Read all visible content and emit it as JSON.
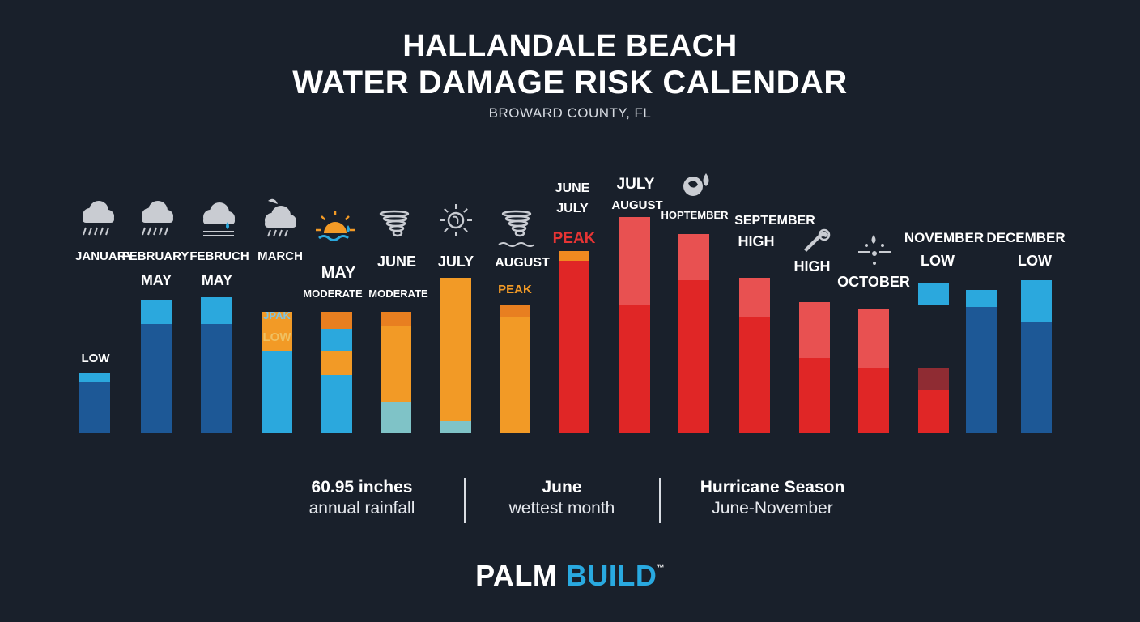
{
  "header": {
    "title_line1": "HALLANDALE BEACH",
    "title_line2": "WATER DAMAGE RISK CALENDAR",
    "subtitle": "BROWARD COUNTY, FL"
  },
  "colors": {
    "background": "#19202b",
    "low_dark": "#1d5896",
    "low_light": "#2ba8dd",
    "moderate": "#f29a26",
    "high": "#e02626",
    "high_light": "#e85151",
    "peak_label": "#e53434"
  },
  "chart_data": {
    "type": "bar",
    "title": "WATER DAMAGE RISK CALENDAR",
    "xlabel": "",
    "ylabel": "",
    "ylim": [
      0,
      100
    ],
    "grid": false,
    "legend": "none",
    "categories": [
      "JANUARY",
      "FEBRUARY",
      "FEBRUCH",
      "MARCH",
      "MAY",
      "JUNE",
      "JULY",
      "AUGUST",
      "JUNE JULY",
      "JULY AUGUST",
      "HOPTEMBER",
      "SEPTEMBER",
      "HIGH",
      "OCTOBER",
      "NOVEMBER",
      "DECEMBER",
      "LOW"
    ],
    "bars": [
      {
        "value": 25,
        "cap": 4,
        "lower": "#1d5896",
        "cap_color": "#2ba8dd",
        "icon": "rain-cloud-icon",
        "labels": [
          "JANUARY",
          "LOW"
        ]
      },
      {
        "value": 55,
        "cap": 10,
        "lower": "#1d5896",
        "cap_color": "#2ba8dd",
        "icon": "rain-cloud-icon",
        "labels": [
          "FEBRUARY",
          "MAY"
        ]
      },
      {
        "value": 56,
        "cap": 11,
        "lower": "#1d5896",
        "cap_color": "#2ba8dd",
        "icon": "cloud-drop-icon",
        "labels": [
          "FEBRUCH",
          "MAY"
        ]
      },
      {
        "value": 50,
        "cap": 16,
        "lower": "#2ba8dd",
        "cap_color": "#f29a26",
        "icon": "storm-cloud-icon",
        "labels": [
          "MARCH",
          "JPAK",
          "LOW"
        ]
      },
      {
        "value": 50,
        "cap": 7,
        "lower": "#2ba8dd",
        "mid": "#f29a26",
        "mid_top": 34,
        "cap_color": "#e87f20",
        "icon": "sun-waves-icon",
        "labels": [
          "MAY",
          "MODERATE"
        ]
      },
      {
        "value": 50,
        "cap": 6,
        "lower": "#7fc3c7",
        "mid": "#f29a26",
        "mid_top": 44,
        "cap_color": "#e87f20",
        "icon": "tornado-icon",
        "labels": [
          "JUNE",
          "MODERATE"
        ]
      },
      {
        "value": 64,
        "cap": 0,
        "lower": "#7fc3c7",
        "mid": "#f29a26",
        "mid_top": 64,
        "cap_color": "#f29a26",
        "icon": "sun-hurricane-icon",
        "labels": [
          "JULY"
        ]
      },
      {
        "value": 53,
        "cap": 5,
        "lower": "#f29a26",
        "cap_color": "#e87f20",
        "icon": "tornado-wave-icon",
        "labels": [
          "AUGUST",
          "PEAK"
        ]
      },
      {
        "value": 75,
        "cap": 4,
        "lower": "#e02626",
        "cap_color": "#f08a20",
        "icon": "",
        "labels": [
          "JUNE",
          "JULY",
          "PEAK"
        ]
      },
      {
        "value": 89,
        "cap": 36,
        "lower": "#e02626",
        "cap_color": "#e85151",
        "icon": "",
        "labels": [
          "JULY",
          "AUGUST"
        ]
      },
      {
        "value": 82,
        "cap": 19,
        "lower": "#e02626",
        "cap_color": "#e85151",
        "icon": "hurricane-drop-icon",
        "labels": [
          "HOPTEMBER"
        ]
      },
      {
        "value": 64,
        "cap": 16,
        "lower": "#e02626",
        "cap_color": "#e85151",
        "icon": "",
        "labels": [
          "SEPTEMBER",
          "HIGH"
        ]
      },
      {
        "value": 54,
        "cap": 23,
        "lower": "#e02626",
        "cap_color": "#e85151",
        "icon": "wrench-icon",
        "labels": [
          "HIGH"
        ]
      },
      {
        "value": 51,
        "cap": 24,
        "lower": "#e02626",
        "cap_color": "#e85151",
        "icon": "drip-icon",
        "labels": [
          "OCTOBER"
        ]
      },
      {
        "value": 27,
        "cap": 9,
        "lower": "#e02626",
        "cap_color": "#8f2c33",
        "extra": {
          "top": 62,
          "bottom": 53,
          "color": "#2ba8dd"
        },
        "icon": "",
        "labels": [
          "NOVEMBER",
          "LOW"
        ]
      },
      {
        "value": 59,
        "cap": 7,
        "lower": "#1d5896",
        "cap_color": "#2ba8dd",
        "icon": "",
        "labels": [
          "DECEMBER"
        ]
      },
      {
        "value": 63,
        "cap": 17,
        "lower": "#1d5896",
        "cap_color": "#2ba8dd",
        "icon": "",
        "labels": [
          "LOW"
        ]
      }
    ]
  },
  "stats": [
    {
      "value": "60.95 inches",
      "desc": "annual rainfall"
    },
    {
      "value": "June",
      "desc": "wettest month"
    },
    {
      "value": "Hurricane Season",
      "desc": "June-November"
    }
  ],
  "logo": {
    "part1": "PALM",
    "part2": "BUILD",
    "tm": "™"
  }
}
